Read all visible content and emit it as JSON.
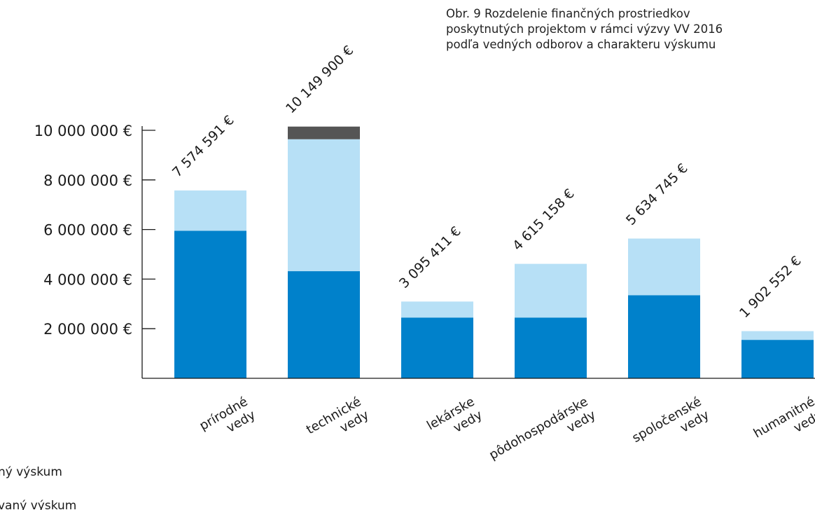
{
  "caption": {
    "line1": "Obr. 9 Rozdelenie finančných prostriedkov",
    "line2": "poskytnutých projektom v rámci výzvy VV 2016",
    "line3": "podľa vedných odborov a charakteru výskumu"
  },
  "legend": {
    "item1": "ný výskum",
    "item2": "vaný výskum"
  },
  "colors": {
    "dark_blue": "#0081cb",
    "light_blue": "#b7e0f6",
    "dark_gray": "#555555",
    "axis": "#1a1a1a"
  },
  "chart_data": {
    "type": "bar",
    "stacked": true,
    "categories": [
      [
        "prírodné",
        "vedy"
      ],
      [
        "technické",
        "vedy"
      ],
      [
        "lekárske",
        "vedy"
      ],
      [
        "pôdohospodárske",
        "vedy"
      ],
      [
        "spoločenské",
        "vedy"
      ],
      [
        "humanitné",
        "vedy"
      ]
    ],
    "series": [
      {
        "values": [
          5950000,
          4320000,
          2450000,
          2450000,
          3350000,
          1550000
        ],
        "color": "#0081cb"
      },
      {
        "values": [
          1624591,
          5320000,
          645411,
          2165158,
          2284745,
          352552
        ],
        "color": "#b7e0f6"
      },
      {
        "values": [
          0,
          509900,
          0,
          0,
          0,
          0
        ],
        "color": "#555555"
      }
    ],
    "totals_labels": [
      "7 574 591 €",
      "10 149 900 €",
      "3 095 411 €",
      "4 615 158 €",
      "5 634 745 €",
      "1 902 552 €"
    ],
    "y_ticks": [
      2000000,
      4000000,
      6000000,
      8000000,
      10000000
    ],
    "y_tick_labels": [
      "2 000 000 €",
      "4 000 000 €",
      "6 000 000 €",
      "8 000 000 €",
      "10 000 000 €"
    ],
    "ylim": [
      0,
      10000000
    ],
    "title": "",
    "xlabel": "",
    "ylabel": "",
    "grid": false
  }
}
